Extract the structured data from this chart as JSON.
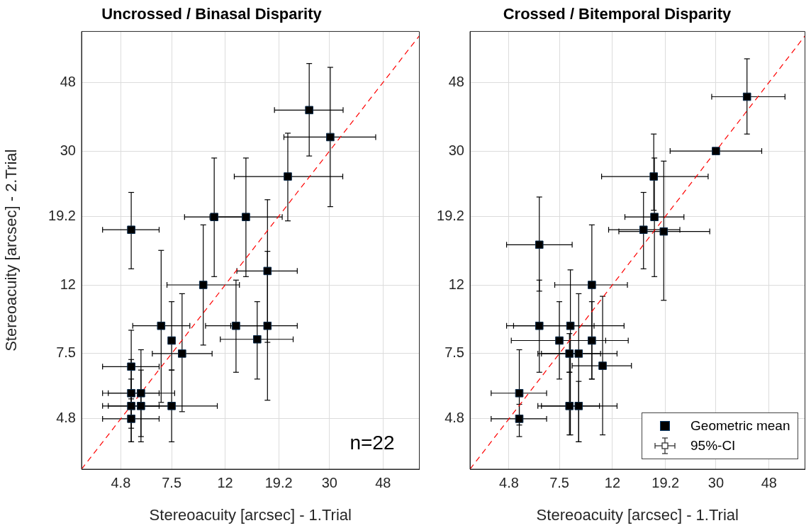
{
  "chart_data": [
    {
      "type": "scatter",
      "title": "Uncrossed / Binasal Disparity",
      "xlabel": "Stereoacuity [arcsec] - 1.Trial",
      "ylabel": "Stereoacuity [arcsec] - 2.Trial",
      "log": "xy",
      "grid": true,
      "marker": "square",
      "xlim": [
        3.4,
        66
      ],
      "ylim": [
        3.4,
        68
      ],
      "xticks": [
        4.8,
        7.5,
        12,
        19.2,
        30,
        48
      ],
      "yticks": [
        4.8,
        7.5,
        12,
        19.2,
        30,
        48
      ],
      "annotations": [
        "n=22"
      ],
      "series": [
        {
          "color": "#000000",
          "x": [
            25.1,
            30.2,
            20.8,
            10.9,
            14.4,
            5.26,
            17.4,
            17.4,
            13.2,
            9.9,
            15.9,
            6.84,
            7.5,
            8.22,
            5.26,
            5.26,
            5.73,
            5.26,
            5.73,
            7.5,
            5.26
          ],
          "values": [
            39.7,
            33.0,
            25.2,
            19.1,
            19.1,
            17.5,
            13.2,
            9.07,
            9.07,
            12,
            8.27,
            9.07,
            8.2,
            7.5,
            6.86,
            5.72,
            5.72,
            5.24,
            5.24,
            5.24,
            4.8
          ],
          "xerrors": [
            [
              18.5,
              33.8
            ],
            [
              20.1,
              45.0
            ],
            [
              13.0,
              33.7
            ],
            [
              8.4,
              14.0
            ],
            [
              10.5,
              19.8
            ],
            [
              4.09,
              6.72
            ],
            [
              13.3,
              22.6
            ],
            [
              12.6,
              22.6
            ],
            [
              10.1,
              17.1
            ],
            [
              7.2,
              13.6
            ],
            [
              11.5,
              21.8
            ],
            [
              5.33,
              8.8
            ],
            null,
            [
              6.33,
              10.7
            ],
            [
              4.09,
              6.72
            ],
            [
              4.09,
              6.72
            ],
            [
              4.3,
              7.7
            ],
            [
              4.09,
              6.72
            ],
            [
              4.3,
              7.7
            ],
            [
              5.8,
              11.2
            ],
            [
              4.09,
              6.72
            ]
          ],
          "errors": [
            [
              29.0,
              54.6
            ],
            [
              20.5,
              53.2
            ],
            [
              18.6,
              33.9
            ],
            [
              12.7,
              28.6
            ],
            [
              12.7,
              28.6
            ],
            [
              13.4,
              22.6
            ],
            [
              8.1,
              21.5
            ],
            [
              5.45,
              15.1
            ],
            [
              6.6,
              12.4
            ],
            [
              7.95,
              18.1
            ],
            [
              6.3,
              10.7
            ],
            [
              5.37,
              15.2
            ],
            [
              6.7,
              10.7
            ],
            [
              5.04,
              11.3
            ],
            [
              5.5,
              8.8
            ],
            [
              4.5,
              7.2
            ],
            [
              4.25,
              7.7
            ],
            [
              4.1,
              6.3
            ],
            [
              4.1,
              6.7
            ],
            [
              4.1,
              6.7
            ],
            [
              4.1,
              5.6
            ]
          ]
        },
        {
          "type": "line",
          "color": "#ff0000",
          "line_style": "dashed",
          "marker": "none",
          "x": [
            3.4,
            66
          ],
          "values": [
            3.4,
            66
          ]
        }
      ]
    },
    {
      "type": "scatter",
      "title": "Crossed / Bitemporal Disparity",
      "xlabel": "Stereoacuity [arcsec] - 1.Trial",
      "log": "xy",
      "grid": true,
      "marker": "square",
      "legend": "bottom right",
      "xlim": [
        3.4,
        66
      ],
      "ylim": [
        3.4,
        68
      ],
      "xticks": [
        4.8,
        7.5,
        12,
        19.2,
        30,
        48
      ],
      "yticks": [
        4.8,
        7.5,
        12,
        19.2,
        30,
        48
      ],
      "annotations": [
        "95%-CI"
      ],
      "series": [
        {
          "name": "Geometric mean",
          "color": "#000000",
          "x": [
            39.5,
            30,
            17.3,
            17.4,
            15.8,
            18.9,
            10.0,
            6.28,
            6.28,
            8.27,
            7.5,
            10.0,
            8.2,
            8.9,
            11.0,
            5.26,
            5.26,
            8.2,
            8.9
          ],
          "values": [
            43.5,
            30,
            25.2,
            19.1,
            17.5,
            17.3,
            12,
            15.8,
            9.07,
            9.07,
            8.2,
            8.2,
            7.5,
            7.5,
            6.9,
            5.72,
            4.8,
            5.24,
            5.24
          ],
          "xerrors": [
            [
              28.9,
              55.3
            ],
            [
              20.0,
              45.0
            ],
            [
              10.9,
              28.0
            ],
            [
              13.4,
              22.6
            ],
            [
              11.6,
              21.8
            ],
            [
              12.7,
              28.4
            ],
            [
              7.2,
              13.7
            ],
            [
              4.7,
              8.4
            ],
            [
              4.7,
              10.2
            ],
            [
              5.0,
              13.3
            ],
            [
              4.9,
              11.3
            ],
            [
              7.4,
              13.8
            ],
            [
              6.2,
              10.8
            ],
            [
              6.4,
              12.5
            ],
            [
              8.4,
              14.2
            ],
            [
              4.1,
              6.7
            ],
            [
              4.1,
              6.7
            ],
            [
              6.2,
              10.7
            ],
            [
              6.4,
              12.5
            ]
          ],
          "errors": [
            [
              33.7,
              56.4
            ],
            null,
            [
              20.0,
              33.7
            ],
            [
              12.7,
              28.6
            ],
            [
              13.4,
              22.6
            ],
            [
              10.8,
              28.0
            ],
            [
              6.3,
              18.1
            ],
            [
              11.5,
              21.9
            ],
            [
              6.6,
              12.4
            ],
            [
              4.3,
              13.3
            ],
            [
              6.3,
              10.7
            ],
            [
              6.3,
              10.7
            ],
            [
              6.6,
              8.6
            ],
            [
              4.1,
              11.3
            ],
            [
              4.3,
              11.1
            ],
            [
              4.6,
              7.7
            ],
            [
              4.25,
              5.3
            ],
            [
              4.3,
              6.6
            ],
            [
              4.1,
              6.2
            ]
          ]
        },
        {
          "type": "line",
          "color": "#ff0000",
          "line_style": "dashed",
          "marker": "none",
          "x": [
            3.4,
            66
          ],
          "values": [
            3.4,
            66
          ]
        }
      ]
    }
  ]
}
